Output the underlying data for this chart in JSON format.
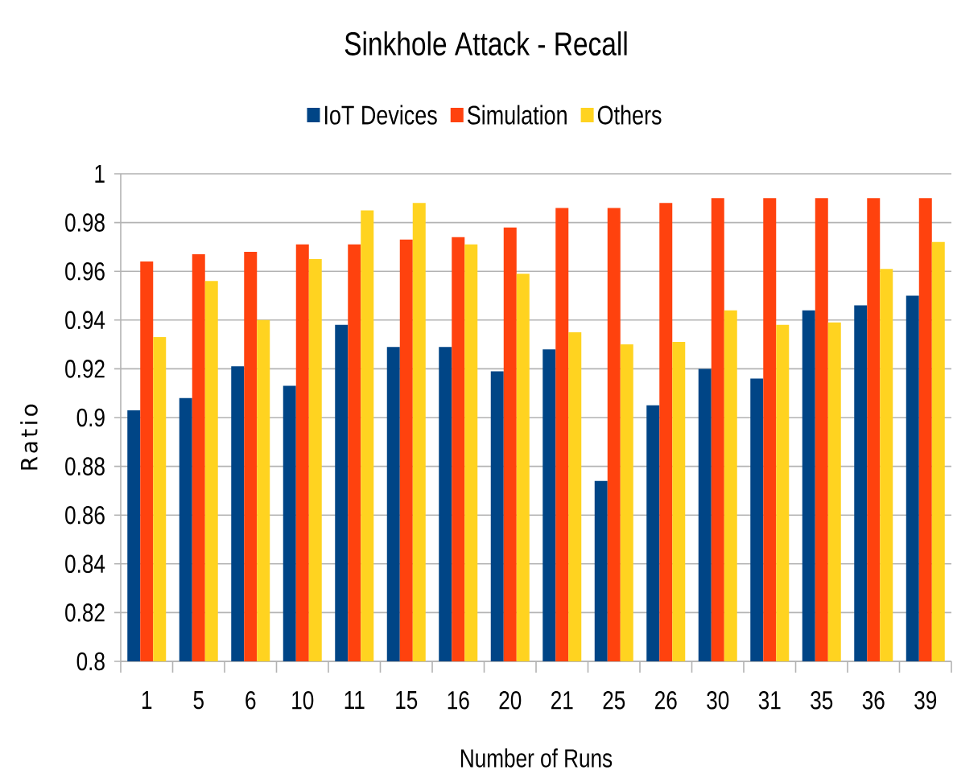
{
  "chart_data": {
    "type": "bar",
    "title": "Sinkhole Attack - Recall",
    "xlabel": "Number of Runs",
    "ylabel": "Ratio",
    "categories": [
      "1",
      "5",
      "6",
      "10",
      "11",
      "15",
      "16",
      "20",
      "21",
      "25",
      "26",
      "30",
      "31",
      "35",
      "36",
      "39"
    ],
    "series": [
      {
        "name": "IoT Devices",
        "color": "#004586",
        "values": [
          0.903,
          0.908,
          0.921,
          0.913,
          0.938,
          0.929,
          0.929,
          0.919,
          0.928,
          0.874,
          0.905,
          0.92,
          0.916,
          0.944,
          0.946,
          0.95
        ]
      },
      {
        "name": "Simulation",
        "color": "#ff420e",
        "values": [
          0.964,
          0.967,
          0.968,
          0.971,
          0.971,
          0.973,
          0.974,
          0.978,
          0.986,
          0.986,
          0.988,
          0.99,
          0.99,
          0.99,
          0.99,
          0.99
        ]
      },
      {
        "name": "Others",
        "color": "#ffd320",
        "values": [
          0.933,
          0.956,
          0.94,
          0.965,
          0.985,
          0.988,
          0.971,
          0.959,
          0.935,
          0.93,
          0.931,
          0.944,
          0.938,
          0.939,
          0.961,
          0.972
        ]
      }
    ],
    "ylim": [
      0.8,
      1
    ],
    "yticks": [
      0.8,
      0.82,
      0.84,
      0.86,
      0.88,
      0.9,
      0.92,
      0.94,
      0.96,
      0.98,
      1
    ],
    "grid": "y",
    "legend": "top"
  }
}
